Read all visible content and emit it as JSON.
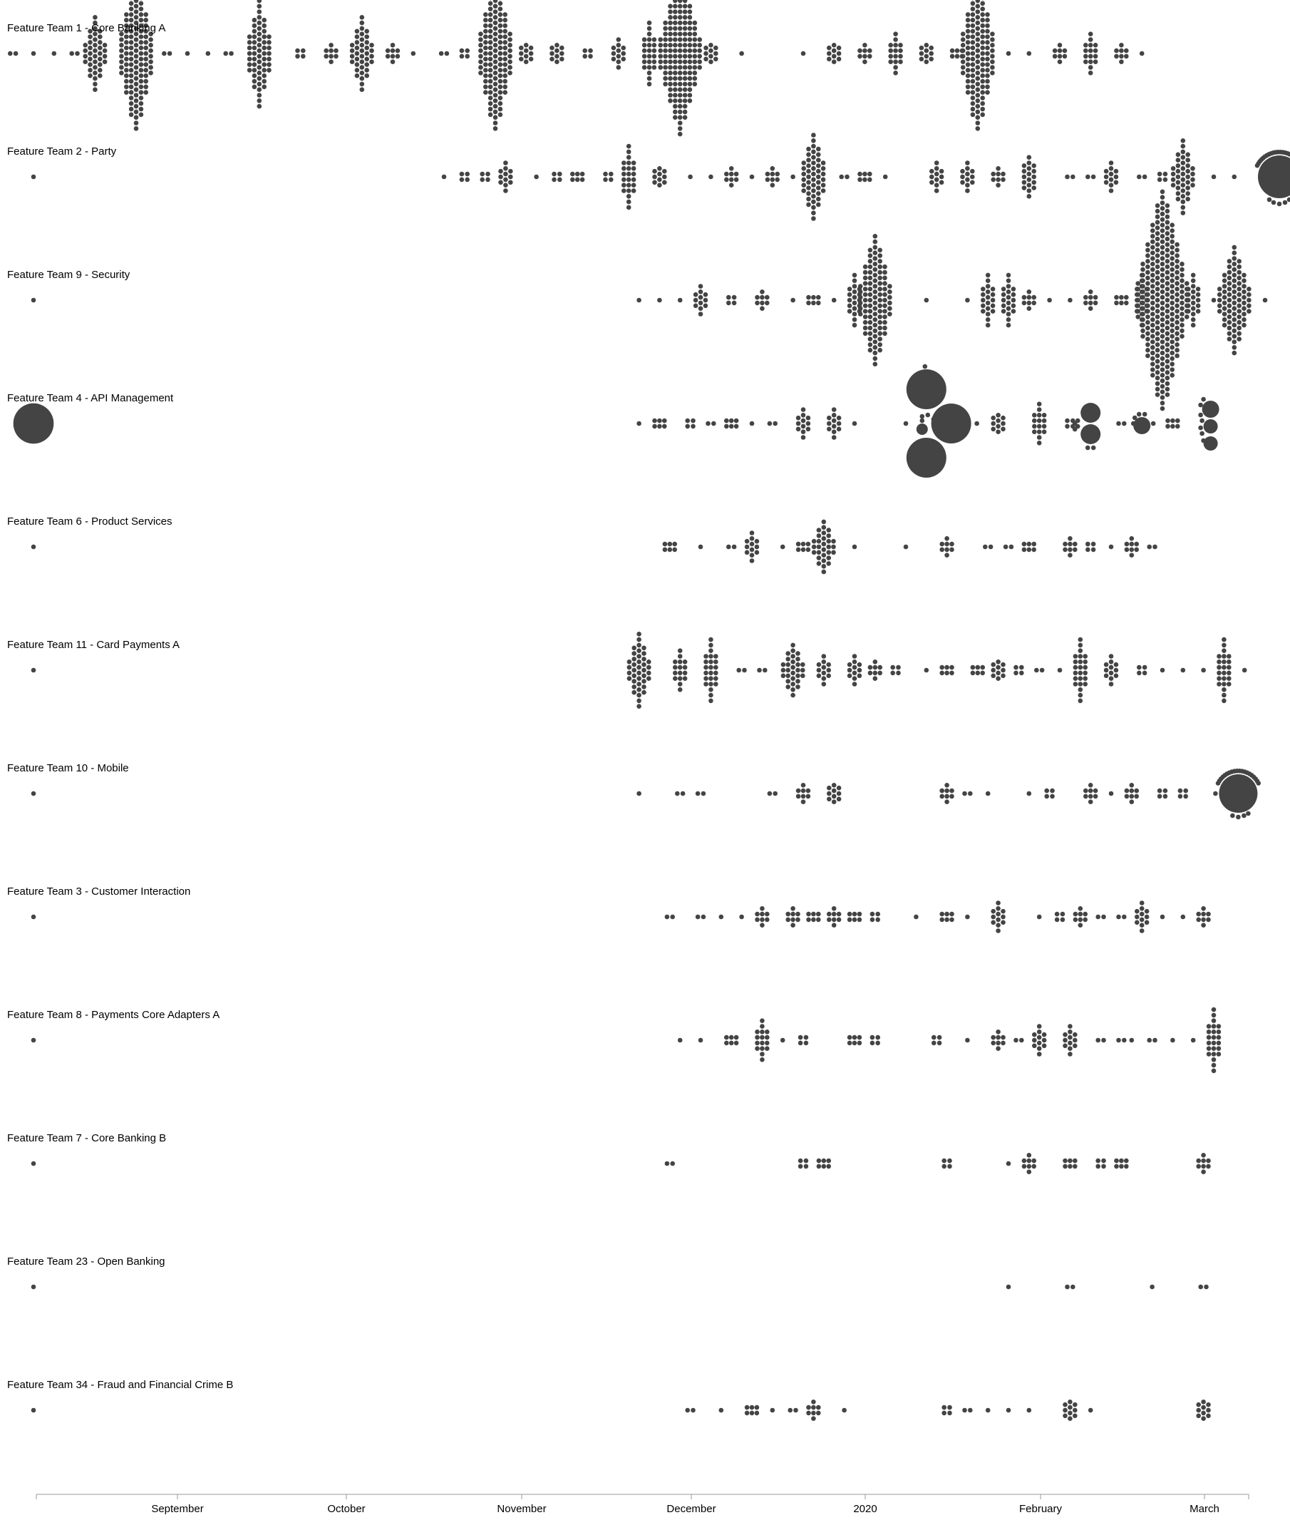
{
  "colors": {
    "dot": "#444444",
    "axis": "#999999",
    "text": "#000000"
  },
  "chart_data": {
    "type": "scatter",
    "subtype": "beeswarm",
    "x_axis": {
      "ticks": [
        "September",
        "October",
        "November",
        "December",
        "2020",
        "February",
        "March"
      ],
      "range": [
        "Aug",
        "Mar"
      ]
    },
    "series": [
      {
        "name": "Feature Team 1 - Core Banking A",
        "clusters": [
          [
            -2,
            2
          ],
          [
            0,
            1
          ],
          [
            2,
            1
          ],
          [
            4,
            2
          ],
          [
            6,
            40
          ],
          [
            10,
            120
          ],
          [
            13,
            2
          ],
          [
            15,
            1
          ],
          [
            17,
            1
          ],
          [
            19,
            2
          ],
          [
            22,
            60
          ],
          [
            26,
            4
          ],
          [
            29,
            8
          ],
          [
            32,
            40
          ],
          [
            35,
            8
          ],
          [
            37,
            1
          ],
          [
            40,
            2
          ],
          [
            42,
            4
          ],
          [
            45,
            120
          ],
          [
            48,
            10
          ],
          [
            51,
            10
          ],
          [
            54,
            4
          ],
          [
            57,
            12
          ],
          [
            60,
            24
          ],
          [
            63,
            150
          ],
          [
            66,
            10
          ],
          [
            69,
            1
          ],
          [
            75,
            1
          ],
          [
            78,
            10
          ],
          [
            81,
            8
          ],
          [
            84,
            16
          ],
          [
            87,
            10
          ],
          [
            90,
            6
          ],
          [
            92,
            120
          ],
          [
            95,
            1
          ],
          [
            97,
            1
          ],
          [
            100,
            8
          ],
          [
            103,
            16
          ],
          [
            106,
            8
          ],
          [
            108,
            1
          ]
        ]
      },
      {
        "name": "Feature Team 2 - Party",
        "clusters": [
          [
            0,
            1
          ],
          [
            40,
            1
          ],
          [
            42,
            4
          ],
          [
            44,
            4
          ],
          [
            46,
            12
          ],
          [
            49,
            1
          ],
          [
            51,
            4
          ],
          [
            53,
            6
          ],
          [
            56,
            4
          ],
          [
            58,
            24
          ],
          [
            61,
            10
          ],
          [
            64,
            1
          ],
          [
            66,
            1
          ],
          [
            68,
            8
          ],
          [
            70,
            1
          ],
          [
            72,
            8
          ],
          [
            74,
            1
          ],
          [
            76,
            50
          ],
          [
            79,
            2
          ],
          [
            81,
            6
          ],
          [
            83,
            1
          ],
          [
            88,
            12
          ],
          [
            91,
            12
          ],
          [
            94,
            8
          ],
          [
            97,
            18
          ],
          [
            101,
            2
          ],
          [
            103,
            2
          ],
          [
            105,
            12
          ],
          [
            108,
            2
          ],
          [
            110,
            4
          ],
          [
            112,
            40
          ],
          [
            115,
            1
          ],
          [
            117,
            1
          ],
          [
            120,
            [
              36,
              1,
              24,
              2,
              2
            ]
          ]
        ]
      },
      {
        "name": "Feature Team 9 - Security",
        "clusters": [
          [
            0,
            1
          ],
          [
            59,
            1
          ],
          [
            61,
            1
          ],
          [
            63,
            1
          ],
          [
            65,
            12
          ],
          [
            68,
            4
          ],
          [
            71,
            8
          ],
          [
            74,
            1
          ],
          [
            76,
            6
          ],
          [
            78,
            1
          ],
          [
            80,
            20
          ],
          [
            82,
            100
          ],
          [
            87,
            1
          ],
          [
            91,
            1
          ],
          [
            93,
            20
          ],
          [
            95,
            20
          ],
          [
            97,
            8
          ],
          [
            99,
            1
          ],
          [
            101,
            1
          ],
          [
            103,
            8
          ],
          [
            106,
            6
          ],
          [
            108,
            20
          ],
          [
            110,
            250
          ],
          [
            113,
            20
          ],
          [
            115,
            1
          ],
          [
            117,
            80
          ],
          [
            120,
            1
          ]
        ]
      },
      {
        "name": "Feature Team 4 - API Management",
        "clusters": [
          [
            0,
            [
              34
            ]
          ],
          [
            59,
            1
          ],
          [
            61,
            6
          ],
          [
            64,
            4
          ],
          [
            66,
            2
          ],
          [
            68,
            6
          ],
          [
            70,
            1
          ],
          [
            72,
            2
          ],
          [
            75,
            12
          ],
          [
            78,
            12
          ],
          [
            80,
            1
          ],
          [
            85,
            1
          ],
          [
            87,
            [
              34,
              34,
              10,
              6,
              2
            ]
          ],
          [
            89,
            [
              34,
              6
            ]
          ],
          [
            91,
            1
          ],
          [
            94,
            10
          ],
          [
            98,
            16
          ],
          [
            101,
            4
          ],
          [
            103,
            [
              18,
              18,
              6,
              4
            ]
          ],
          [
            106,
            2
          ],
          [
            108,
            [
              16,
              8
            ]
          ],
          [
            111,
            6
          ],
          [
            114,
            [
              16,
              14,
              14,
              4,
              4,
              4
            ]
          ]
        ]
      },
      {
        "name": "Feature Team 6 - Product Services",
        "clusters": [
          [
            0,
            1
          ],
          [
            62,
            6
          ],
          [
            65,
            1
          ],
          [
            68,
            2
          ],
          [
            70,
            12
          ],
          [
            73,
            1
          ],
          [
            75,
            6
          ],
          [
            77,
            30
          ],
          [
            80,
            1
          ],
          [
            85,
            1
          ],
          [
            89,
            8
          ],
          [
            93,
            2
          ],
          [
            95,
            2
          ],
          [
            97,
            6
          ],
          [
            101,
            8
          ],
          [
            103,
            4
          ],
          [
            105,
            1
          ],
          [
            107,
            8
          ],
          [
            109,
            2
          ]
        ]
      },
      {
        "name": "Feature Team 11 - Card Payments A",
        "clusters": [
          [
            0,
            1
          ],
          [
            59,
            40
          ],
          [
            63,
            16
          ],
          [
            66,
            24
          ],
          [
            69,
            2
          ],
          [
            71,
            2
          ],
          [
            74,
            30
          ],
          [
            77,
            12
          ],
          [
            80,
            12
          ],
          [
            82,
            8
          ],
          [
            84,
            4
          ],
          [
            87,
            1
          ],
          [
            89,
            6
          ],
          [
            92,
            6
          ],
          [
            94,
            10
          ],
          [
            96,
            4
          ],
          [
            98,
            2
          ],
          [
            100,
            1
          ],
          [
            102,
            24
          ],
          [
            105,
            12
          ],
          [
            108,
            4
          ],
          [
            110,
            1
          ],
          [
            112,
            1
          ],
          [
            114,
            1
          ],
          [
            116,
            24
          ],
          [
            118,
            1
          ]
        ]
      },
      {
        "name": "Feature Team 10 - Mobile",
        "clusters": [
          [
            0,
            1
          ],
          [
            59,
            1
          ],
          [
            63,
            2
          ],
          [
            65,
            2
          ],
          [
            72,
            2
          ],
          [
            75,
            8
          ],
          [
            78,
            10
          ],
          [
            89,
            8
          ],
          [
            91,
            2
          ],
          [
            93,
            1
          ],
          [
            97,
            1
          ],
          [
            99,
            4
          ],
          [
            103,
            8
          ],
          [
            105,
            1
          ],
          [
            107,
            8
          ],
          [
            110,
            4
          ],
          [
            112,
            4
          ],
          [
            116,
            [
              30,
              1,
              20
            ]
          ]
        ]
      },
      {
        "name": "Feature Team 3 - Customer Interaction",
        "clusters": [
          [
            0,
            1
          ],
          [
            62,
            2
          ],
          [
            65,
            2
          ],
          [
            67,
            1
          ],
          [
            69,
            1
          ],
          [
            71,
            8
          ],
          [
            74,
            8
          ],
          [
            76,
            6
          ],
          [
            78,
            8
          ],
          [
            80,
            6
          ],
          [
            82,
            4
          ],
          [
            86,
            1
          ],
          [
            89,
            6
          ],
          [
            91,
            1
          ],
          [
            94,
            12
          ],
          [
            98,
            1
          ],
          [
            100,
            4
          ],
          [
            102,
            8
          ],
          [
            104,
            2
          ],
          [
            106,
            2
          ],
          [
            108,
            12
          ],
          [
            110,
            1
          ],
          [
            112,
            1
          ],
          [
            114,
            8
          ]
        ]
      },
      {
        "name": "Feature Team 8 - Payments Core Adapters A",
        "clusters": [
          [
            0,
            1
          ],
          [
            63,
            1
          ],
          [
            65,
            1
          ],
          [
            68,
            6
          ],
          [
            71,
            16
          ],
          [
            73,
            1
          ],
          [
            75,
            4
          ],
          [
            80,
            6
          ],
          [
            82,
            4
          ],
          [
            88,
            4
          ],
          [
            91,
            1
          ],
          [
            94,
            8
          ],
          [
            96,
            2
          ],
          [
            98,
            12
          ],
          [
            101,
            12
          ],
          [
            104,
            2
          ],
          [
            106,
            2
          ],
          [
            107,
            1
          ],
          [
            109,
            2
          ],
          [
            111,
            1
          ],
          [
            113,
            1
          ],
          [
            115,
            24
          ]
        ]
      },
      {
        "name": "Feature Team 7 - Core Banking B",
        "clusters": [
          [
            0,
            1
          ],
          [
            62,
            2
          ],
          [
            75,
            4
          ],
          [
            77,
            6
          ],
          [
            89,
            4
          ],
          [
            95,
            1
          ],
          [
            97,
            8
          ],
          [
            101,
            6
          ],
          [
            104,
            4
          ],
          [
            106,
            6
          ],
          [
            114,
            8
          ]
        ]
      },
      {
        "name": "Feature Team 23 - Open Banking",
        "clusters": [
          [
            0,
            1
          ],
          [
            95,
            1
          ],
          [
            101,
            2
          ],
          [
            109,
            1
          ],
          [
            114,
            2
          ]
        ]
      },
      {
        "name": "Feature Team 34 - Fraud and Financial Crime B",
        "clusters": [
          [
            0,
            1
          ],
          [
            64,
            2
          ],
          [
            67,
            1
          ],
          [
            70,
            6
          ],
          [
            72,
            1
          ],
          [
            74,
            2
          ],
          [
            76,
            8
          ],
          [
            79,
            1
          ],
          [
            89,
            4
          ],
          [
            91,
            2
          ],
          [
            93,
            1
          ],
          [
            95,
            1
          ],
          [
            97,
            1
          ],
          [
            101,
            10
          ],
          [
            103,
            1
          ],
          [
            114,
            10
          ]
        ]
      }
    ]
  }
}
